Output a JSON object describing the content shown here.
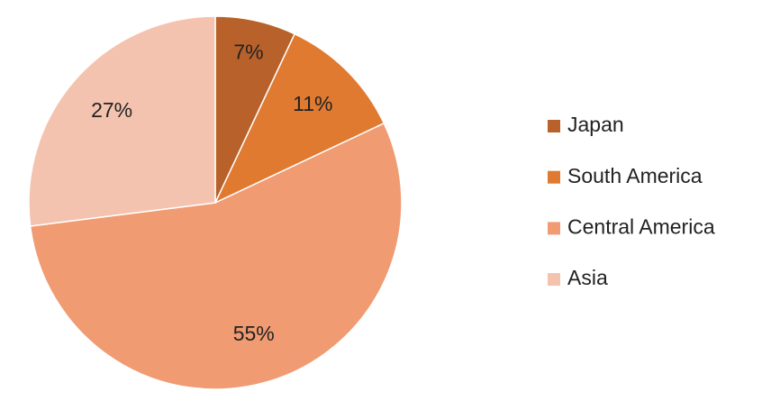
{
  "chart_data": {
    "type": "pie",
    "categories": [
      "Japan",
      "South America",
      "Central America",
      "Asia"
    ],
    "values": [
      7,
      11,
      55,
      27
    ],
    "value_labels": [
      "7%",
      "11%",
      "55%",
      "27%"
    ],
    "colors": [
      "#b8612a",
      "#e07a30",
      "#f09b72",
      "#f4c3af"
    ],
    "legend": "right"
  }
}
